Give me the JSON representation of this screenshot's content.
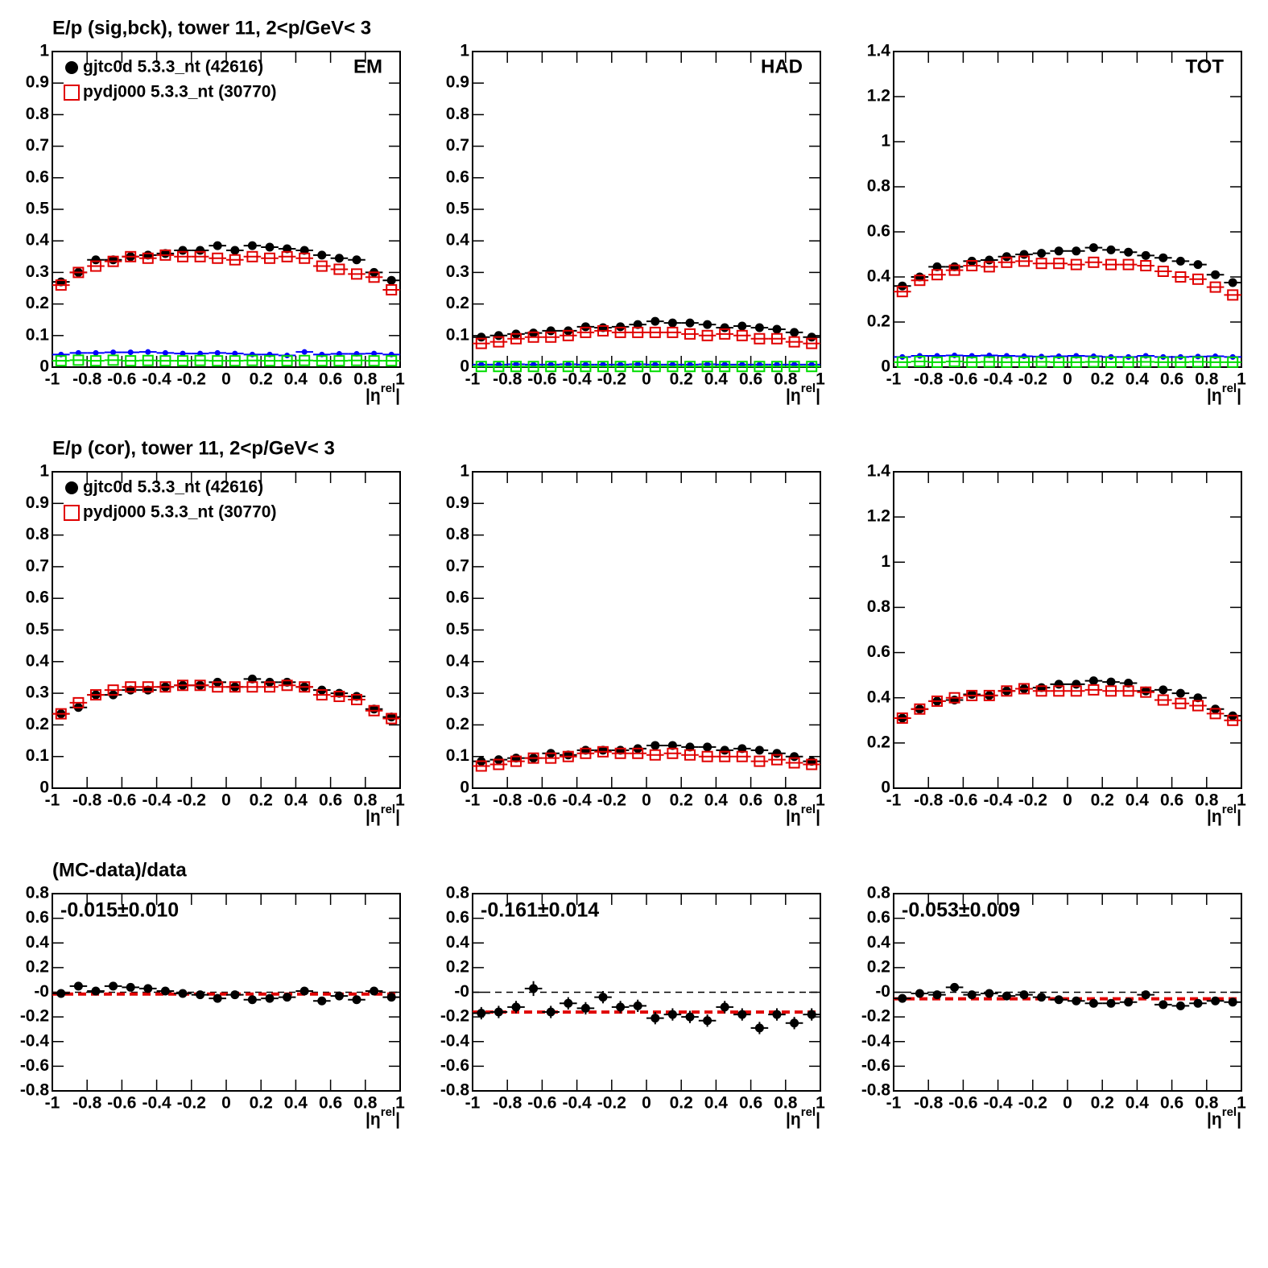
{
  "chart_data": [
    {
      "type": "scatter",
      "title": "E/p (sig,bck), tower 11,  2<p/GeV< 3",
      "label": "EM",
      "x": [
        -0.95,
        -0.85,
        -0.75,
        -0.65,
        -0.55,
        -0.45,
        -0.35,
        -0.25,
        -0.15,
        -0.05,
        0.05,
        0.15,
        0.25,
        0.35,
        0.45,
        0.55,
        0.65,
        0.75,
        0.85,
        0.95
      ],
      "xlim": [
        -1,
        1
      ],
      "xticks": [
        -1,
        -0.8,
        -0.6,
        -0.4,
        -0.2,
        0,
        0.2,
        0.4,
        0.6,
        0.8,
        1
      ],
      "xlabel": [
        "|η",
        "rel",
        "|"
      ],
      "ylim": [
        0,
        1
      ],
      "yticks": [
        0,
        0.1,
        0.2,
        0.3,
        0.4,
        0.5,
        0.6,
        0.7,
        0.8,
        0.9,
        1
      ],
      "series": [
        {
          "name": "gjtc0d 5.3.3_nt (42616)",
          "color": "#000000",
          "marker": "circle",
          "values": [
            0.27,
            0.3,
            0.34,
            0.34,
            0.35,
            0.355,
            0.36,
            0.37,
            0.37,
            0.385,
            0.37,
            0.385,
            0.38,
            0.375,
            0.37,
            0.355,
            0.345,
            0.34,
            0.3,
            0.275
          ]
        },
        {
          "name": "pydj000 5.3.3_nt (30770)",
          "color": "#e00000",
          "marker": "square",
          "values": [
            0.26,
            0.3,
            0.32,
            0.335,
            0.35,
            0.345,
            0.355,
            0.35,
            0.35,
            0.345,
            0.34,
            0.35,
            0.345,
            0.35,
            0.345,
            0.32,
            0.31,
            0.295,
            0.285,
            0.245
          ]
        },
        {
          "color": "#0000ff",
          "marker": "dot",
          "values": [
            0.04,
            0.045,
            0.045,
            0.047,
            0.047,
            0.048,
            0.045,
            0.043,
            0.043,
            0.045,
            0.043,
            0.04,
            0.04,
            0.037,
            0.048,
            0.04,
            0.042,
            0.042,
            0.043,
            0.04
          ]
        },
        {
          "color": "#00dd00",
          "marker": "square",
          "values": [
            0.02,
            0.022,
            0.02,
            0.022,
            0.02,
            0.021,
            0.02,
            0.02,
            0.021,
            0.02,
            0.02,
            0.021,
            0.02,
            0.02,
            0.021,
            0.02,
            0.02,
            0.021,
            0.02,
            0.02
          ]
        }
      ]
    },
    {
      "type": "scatter",
      "label": "HAD",
      "x": [
        -0.95,
        -0.85,
        -0.75,
        -0.65,
        -0.55,
        -0.45,
        -0.35,
        -0.25,
        -0.15,
        -0.05,
        0.05,
        0.15,
        0.25,
        0.35,
        0.45,
        0.55,
        0.65,
        0.75,
        0.85,
        0.95
      ],
      "xlim": [
        -1,
        1
      ],
      "xticks": [
        -1,
        -0.8,
        -0.6,
        -0.4,
        -0.2,
        0,
        0.2,
        0.4,
        0.6,
        0.8,
        1
      ],
      "xlabel": [
        "|η",
        "rel",
        "|"
      ],
      "ylim": [
        0,
        1
      ],
      "yticks": [
        0,
        0.1,
        0.2,
        0.3,
        0.4,
        0.5,
        0.6,
        0.7,
        0.8,
        0.9,
        1
      ],
      "series": [
        {
          "color": "#000000",
          "marker": "circle",
          "values": [
            0.095,
            0.1,
            0.105,
            0.108,
            0.115,
            0.115,
            0.128,
            0.125,
            0.128,
            0.135,
            0.145,
            0.14,
            0.14,
            0.135,
            0.125,
            0.13,
            0.125,
            0.12,
            0.11,
            0.095
          ]
        },
        {
          "color": "#e00000",
          "marker": "square",
          "values": [
            0.075,
            0.08,
            0.09,
            0.095,
            0.095,
            0.1,
            0.11,
            0.115,
            0.11,
            0.11,
            0.11,
            0.11,
            0.105,
            0.1,
            0.105,
            0.1,
            0.09,
            0.09,
            0.08,
            0.075
          ]
        },
        {
          "color": "#0000ff",
          "marker": "dot",
          "values": [
            0.008,
            0.008,
            0.009,
            0.008,
            0.008,
            0.009,
            0.008,
            0.008,
            0.008,
            0.009,
            0.008,
            0.008,
            0.008,
            0.009,
            0.008,
            0.008,
            0.008,
            0.008,
            0.008,
            0.008
          ]
        },
        {
          "color": "#00dd00",
          "marker": "square",
          "values": [
            0.002,
            0.002,
            0.002,
            0.002,
            0.002,
            0.002,
            0.002,
            0.002,
            0.002,
            0.002,
            0.002,
            0.002,
            0.002,
            0.002,
            0.002,
            0.002,
            0.002,
            0.002,
            0.002,
            0.002
          ]
        }
      ]
    },
    {
      "type": "scatter",
      "label": "TOT",
      "x": [
        -0.95,
        -0.85,
        -0.75,
        -0.65,
        -0.55,
        -0.45,
        -0.35,
        -0.25,
        -0.15,
        -0.05,
        0.05,
        0.15,
        0.25,
        0.35,
        0.45,
        0.55,
        0.65,
        0.75,
        0.85,
        0.95
      ],
      "xlim": [
        -1,
        1
      ],
      "xticks": [
        -1,
        -0.8,
        -0.6,
        -0.4,
        -0.2,
        0,
        0.2,
        0.4,
        0.6,
        0.8,
        1
      ],
      "xlabel": [
        "|η",
        "rel",
        "|"
      ],
      "ylim": [
        0,
        1.4
      ],
      "yticks": [
        0,
        0.2,
        0.4,
        0.6,
        0.8,
        1,
        1.2,
        1.4
      ],
      "series": [
        {
          "color": "#000000",
          "marker": "circle",
          "values": [
            0.36,
            0.4,
            0.445,
            0.445,
            0.47,
            0.475,
            0.49,
            0.5,
            0.505,
            0.515,
            0.515,
            0.53,
            0.52,
            0.51,
            0.495,
            0.485,
            0.47,
            0.455,
            0.41,
            0.375
          ]
        },
        {
          "color": "#e00000",
          "marker": "square",
          "values": [
            0.335,
            0.385,
            0.41,
            0.43,
            0.45,
            0.445,
            0.465,
            0.47,
            0.46,
            0.46,
            0.455,
            0.465,
            0.455,
            0.455,
            0.45,
            0.425,
            0.4,
            0.39,
            0.355,
            0.32
          ]
        },
        {
          "color": "#0000ff",
          "marker": "dot",
          "values": [
            0.045,
            0.05,
            0.05,
            0.052,
            0.05,
            0.052,
            0.05,
            0.048,
            0.047,
            0.048,
            0.05,
            0.048,
            0.045,
            0.045,
            0.05,
            0.045,
            0.045,
            0.047,
            0.048,
            0.045
          ]
        },
        {
          "color": "#00dd00",
          "marker": "square",
          "values": [
            0.022,
            0.025,
            0.022,
            0.025,
            0.022,
            0.023,
            0.022,
            0.022,
            0.023,
            0.022,
            0.022,
            0.023,
            0.022,
            0.022,
            0.023,
            0.022,
            0.022,
            0.023,
            0.022,
            0.022
          ]
        }
      ]
    },
    {
      "type": "scatter",
      "title": "E/p (cor), tower 11,  2<p/GeV< 3",
      "x": [
        -0.95,
        -0.85,
        -0.75,
        -0.65,
        -0.55,
        -0.45,
        -0.35,
        -0.25,
        -0.15,
        -0.05,
        0.05,
        0.15,
        0.25,
        0.35,
        0.45,
        0.55,
        0.65,
        0.75,
        0.85,
        0.95
      ],
      "xlim": [
        -1,
        1
      ],
      "xticks": [
        -1,
        -0.8,
        -0.6,
        -0.4,
        -0.2,
        0,
        0.2,
        0.4,
        0.6,
        0.8,
        1
      ],
      "xlabel": [
        "|η",
        "rel",
        "|"
      ],
      "ylim": [
        0,
        1
      ],
      "yticks": [
        0,
        0.1,
        0.2,
        0.3,
        0.4,
        0.5,
        0.6,
        0.7,
        0.8,
        0.9,
        1
      ],
      "series": [
        {
          "name": "gjtc0d 5.3.3_nt (42616)",
          "color": "#000000",
          "marker": "circle",
          "values": [
            0.235,
            0.255,
            0.295,
            0.295,
            0.31,
            0.31,
            0.32,
            0.325,
            0.325,
            0.335,
            0.32,
            0.345,
            0.335,
            0.335,
            0.32,
            0.31,
            0.3,
            0.29,
            0.25,
            0.225
          ]
        },
        {
          "name": "pydj000 5.3.3_nt (30770)",
          "color": "#e00000",
          "marker": "square",
          "values": [
            0.235,
            0.27,
            0.295,
            0.31,
            0.32,
            0.32,
            0.32,
            0.325,
            0.325,
            0.32,
            0.32,
            0.32,
            0.32,
            0.325,
            0.32,
            0.295,
            0.29,
            0.28,
            0.245,
            0.22
          ]
        }
      ]
    },
    {
      "type": "scatter",
      "x": [
        -0.95,
        -0.85,
        -0.75,
        -0.65,
        -0.55,
        -0.45,
        -0.35,
        -0.25,
        -0.15,
        -0.05,
        0.05,
        0.15,
        0.25,
        0.35,
        0.45,
        0.55,
        0.65,
        0.75,
        0.85,
        0.95
      ],
      "xlim": [
        -1,
        1
      ],
      "xticks": [
        -1,
        -0.8,
        -0.6,
        -0.4,
        -0.2,
        0,
        0.2,
        0.4,
        0.6,
        0.8,
        1
      ],
      "xlabel": [
        "|η",
        "rel",
        "|"
      ],
      "ylim": [
        0,
        1
      ],
      "yticks": [
        0,
        0.1,
        0.2,
        0.3,
        0.4,
        0.5,
        0.6,
        0.7,
        0.8,
        0.9,
        1
      ],
      "series": [
        {
          "color": "#000000",
          "marker": "circle",
          "values": [
            0.085,
            0.09,
            0.095,
            0.095,
            0.11,
            0.105,
            0.12,
            0.12,
            0.12,
            0.125,
            0.135,
            0.135,
            0.13,
            0.13,
            0.12,
            0.125,
            0.12,
            0.11,
            0.1,
            0.085
          ]
        },
        {
          "color": "#e00000",
          "marker": "square",
          "values": [
            0.07,
            0.075,
            0.085,
            0.095,
            0.095,
            0.1,
            0.11,
            0.115,
            0.11,
            0.11,
            0.105,
            0.11,
            0.105,
            0.1,
            0.1,
            0.1,
            0.085,
            0.09,
            0.08,
            0.075
          ]
        }
      ]
    },
    {
      "type": "scatter",
      "x": [
        -0.95,
        -0.85,
        -0.75,
        -0.65,
        -0.55,
        -0.45,
        -0.35,
        -0.25,
        -0.15,
        -0.05,
        0.05,
        0.15,
        0.25,
        0.35,
        0.45,
        0.55,
        0.65,
        0.75,
        0.85,
        0.95
      ],
      "xlim": [
        -1,
        1
      ],
      "xticks": [
        -1,
        -0.8,
        -0.6,
        -0.4,
        -0.2,
        0,
        0.2,
        0.4,
        0.6,
        0.8,
        1
      ],
      "xlabel": [
        "|η",
        "rel",
        "|"
      ],
      "ylim": [
        0,
        1.4
      ],
      "yticks": [
        0,
        0.2,
        0.4,
        0.6,
        0.8,
        1,
        1.2,
        1.4
      ],
      "series": [
        {
          "color": "#000000",
          "marker": "circle",
          "values": [
            0.31,
            0.35,
            0.385,
            0.39,
            0.415,
            0.41,
            0.43,
            0.44,
            0.445,
            0.46,
            0.46,
            0.475,
            0.47,
            0.465,
            0.43,
            0.435,
            0.42,
            0.4,
            0.35,
            0.32
          ]
        },
        {
          "color": "#e00000",
          "marker": "square",
          "values": [
            0.31,
            0.35,
            0.385,
            0.4,
            0.41,
            0.41,
            0.43,
            0.44,
            0.43,
            0.43,
            0.43,
            0.435,
            0.43,
            0.43,
            0.425,
            0.39,
            0.375,
            0.365,
            0.33,
            0.3
          ]
        }
      ]
    },
    {
      "type": "scatter",
      "title": "(MC-data)/data",
      "annotation": "-0.015±0.010",
      "fit": -0.015,
      "x": [
        -0.95,
        -0.85,
        -0.75,
        -0.65,
        -0.55,
        -0.45,
        -0.35,
        -0.25,
        -0.15,
        -0.05,
        0.05,
        0.15,
        0.25,
        0.35,
        0.45,
        0.55,
        0.65,
        0.75,
        0.85,
        0.95
      ],
      "xlim": [
        -1,
        1
      ],
      "xticks": [
        -1,
        -0.8,
        -0.6,
        -0.4,
        -0.2,
        0,
        0.2,
        0.4,
        0.6,
        0.8,
        1
      ],
      "xlabel": [
        "|η",
        "rel",
        "|"
      ],
      "ylim": [
        -0.8,
        0.8
      ],
      "yticks": [
        -0.8,
        -0.6,
        -0.4,
        -0.2,
        {
          "value": 0,
          "label": "-0"
        },
        0.2,
        0.4,
        0.6,
        0.8
      ],
      "series": [
        {
          "color": "#000000",
          "marker": "circle",
          "values": [
            -0.01,
            0.05,
            0.01,
            0.05,
            0.04,
            0.03,
            0.01,
            -0.01,
            -0.02,
            -0.05,
            -0.02,
            -0.06,
            -0.05,
            -0.04,
            0.01,
            -0.07,
            -0.03,
            -0.06,
            0.01,
            -0.04
          ],
          "errors": [
            0.03,
            0.03,
            0.03,
            0.03,
            0.03,
            0.03,
            0.03,
            0.03,
            0.03,
            0.03,
            0.03,
            0.03,
            0.03,
            0.03,
            0.03,
            0.03,
            0.03,
            0.03,
            0.03,
            0.03
          ]
        }
      ]
    },
    {
      "type": "scatter",
      "annotation": "-0.161±0.014",
      "fit": -0.161,
      "x": [
        -0.95,
        -0.85,
        -0.75,
        -0.65,
        -0.55,
        -0.45,
        -0.35,
        -0.25,
        -0.15,
        -0.05,
        0.05,
        0.15,
        0.25,
        0.35,
        0.45,
        0.55,
        0.65,
        0.75,
        0.85,
        0.95
      ],
      "xlim": [
        -1,
        1
      ],
      "xticks": [
        -1,
        -0.8,
        -0.6,
        -0.4,
        -0.2,
        0,
        0.2,
        0.4,
        0.6,
        0.8,
        1
      ],
      "xlabel": [
        "|η",
        "rel",
        "|"
      ],
      "ylim": [
        -0.8,
        0.8
      ],
      "yticks": [
        -0.8,
        -0.6,
        -0.4,
        -0.2,
        {
          "value": 0,
          "label": "-0"
        },
        0.2,
        0.4,
        0.6,
        0.8
      ],
      "series": [
        {
          "color": "#000000",
          "marker": "circle",
          "values": [
            -0.17,
            -0.16,
            -0.12,
            0.03,
            -0.16,
            -0.09,
            -0.13,
            -0.04,
            -0.12,
            -0.11,
            -0.21,
            -0.18,
            -0.2,
            -0.23,
            -0.12,
            -0.18,
            -0.29,
            -0.18,
            -0.25,
            -0.18
          ],
          "errors": [
            0.05,
            0.05,
            0.05,
            0.06,
            0.05,
            0.05,
            0.05,
            0.05,
            0.05,
            0.05,
            0.05,
            0.05,
            0.05,
            0.05,
            0.05,
            0.05,
            0.05,
            0.05,
            0.05,
            0.05
          ]
        }
      ]
    },
    {
      "type": "scatter",
      "annotation": "-0.053±0.009",
      "fit": -0.053,
      "x": [
        -0.95,
        -0.85,
        -0.75,
        -0.65,
        -0.55,
        -0.45,
        -0.35,
        -0.25,
        -0.15,
        -0.05,
        0.05,
        0.15,
        0.25,
        0.35,
        0.45,
        0.55,
        0.65,
        0.75,
        0.85,
        0.95
      ],
      "xlim": [
        -1,
        1
      ],
      "xticks": [
        -1,
        -0.8,
        -0.6,
        -0.4,
        -0.2,
        0,
        0.2,
        0.4,
        0.6,
        0.8,
        1
      ],
      "xlabel": [
        "|η",
        "rel",
        "|"
      ],
      "ylim": [
        -0.8,
        0.8
      ],
      "yticks": [
        -0.8,
        -0.6,
        -0.4,
        -0.2,
        {
          "value": 0,
          "label": "-0"
        },
        0.2,
        0.4,
        0.6,
        0.8
      ],
      "series": [
        {
          "color": "#000000",
          "marker": "circle",
          "values": [
            -0.05,
            -0.01,
            -0.02,
            0.04,
            -0.02,
            -0.01,
            -0.03,
            -0.02,
            -0.04,
            -0.06,
            -0.07,
            -0.09,
            -0.09,
            -0.08,
            -0.02,
            -0.1,
            -0.11,
            -0.09,
            -0.07,
            -0.08
          ],
          "errors": [
            0.02,
            0.02,
            0.02,
            0.02,
            0.02,
            0.02,
            0.02,
            0.02,
            0.02,
            0.02,
            0.02,
            0.02,
            0.02,
            0.02,
            0.02,
            0.02,
            0.02,
            0.02,
            0.02,
            0.02
          ]
        }
      ]
    }
  ]
}
